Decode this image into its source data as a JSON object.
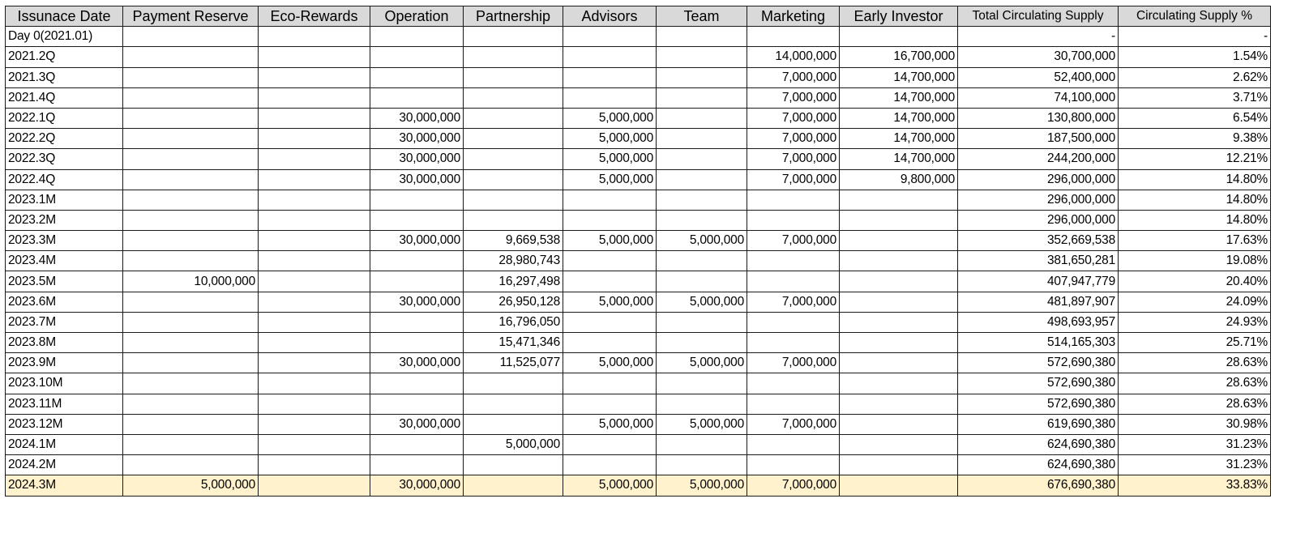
{
  "headers": [
    "Issunace Date",
    "Payment Reserve",
    "Eco-Rewards",
    "Operation",
    "Partnership",
    "Advisors",
    "Team",
    "Marketing",
    "Early Investor",
    "Total Circulating Supply",
    "Circulating Supply %"
  ],
  "rows": [
    [
      "Day 0(2021.01)",
      "",
      "",
      "",
      "",
      "",
      "",
      "",
      "",
      "-",
      "-"
    ],
    [
      "2021.2Q",
      "",
      "",
      "",
      "",
      "",
      "",
      "14,000,000",
      "16,700,000",
      "30,700,000",
      "1.54%"
    ],
    [
      "2021.3Q",
      "",
      "",
      "",
      "",
      "",
      "",
      "7,000,000",
      "14,700,000",
      "52,400,000",
      "2.62%"
    ],
    [
      "2021.4Q",
      "",
      "",
      "",
      "",
      "",
      "",
      "7,000,000",
      "14,700,000",
      "74,100,000",
      "3.71%"
    ],
    [
      "2022.1Q",
      "",
      "",
      "30,000,000",
      "",
      "5,000,000",
      "",
      "7,000,000",
      "14,700,000",
      "130,800,000",
      "6.54%"
    ],
    [
      "2022.2Q",
      "",
      "",
      "30,000,000",
      "",
      "5,000,000",
      "",
      "7,000,000",
      "14,700,000",
      "187,500,000",
      "9.38%"
    ],
    [
      "2022.3Q",
      "",
      "",
      "30,000,000",
      "",
      "5,000,000",
      "",
      "7,000,000",
      "14,700,000",
      "244,200,000",
      "12.21%"
    ],
    [
      "2022.4Q",
      "",
      "",
      "30,000,000",
      "",
      "5,000,000",
      "",
      "7,000,000",
      "9,800,000",
      "296,000,000",
      "14.80%"
    ],
    [
      "2023.1M",
      "",
      "",
      "",
      "",
      "",
      "",
      "",
      "",
      "296,000,000",
      "14.80%"
    ],
    [
      "2023.2M",
      "",
      "",
      "",
      "",
      "",
      "",
      "",
      "",
      "296,000,000",
      "14.80%"
    ],
    [
      "2023.3M",
      "",
      "",
      "30,000,000",
      "9,669,538",
      "5,000,000",
      "5,000,000",
      "7,000,000",
      "",
      "352,669,538",
      "17.63%"
    ],
    [
      "2023.4M",
      "",
      "",
      "",
      "28,980,743",
      "",
      "",
      "",
      "",
      "381,650,281",
      "19.08%"
    ],
    [
      "2023.5M",
      "10,000,000",
      "",
      "",
      "16,297,498",
      "",
      "",
      "",
      "",
      "407,947,779",
      "20.40%"
    ],
    [
      "2023.6M",
      "",
      "",
      "30,000,000",
      "26,950,128",
      "5,000,000",
      "5,000,000",
      "7,000,000",
      "",
      "481,897,907",
      "24.09%"
    ],
    [
      "2023.7M",
      "",
      "",
      "",
      "16,796,050",
      "",
      "",
      "",
      "",
      "498,693,957",
      "24.93%"
    ],
    [
      "2023.8M",
      "",
      "",
      "",
      "15,471,346",
      "",
      "",
      "",
      "",
      "514,165,303",
      "25.71%"
    ],
    [
      "2023.9M",
      "",
      "",
      "30,000,000",
      "11,525,077",
      "5,000,000",
      "5,000,000",
      "7,000,000",
      "",
      "572,690,380",
      "28.63%"
    ],
    [
      "2023.10M",
      "",
      "",
      "",
      "",
      "",
      "",
      "",
      "",
      "572,690,380",
      "28.63%"
    ],
    [
      "2023.11M",
      "",
      "",
      "",
      "",
      "",
      "",
      "",
      "",
      "572,690,380",
      "28.63%"
    ],
    [
      "2023.12M",
      "",
      "",
      "30,000,000",
      "",
      "5,000,000",
      "5,000,000",
      "7,000,000",
      "",
      "619,690,380",
      "30.98%"
    ],
    [
      "2024.1M",
      "",
      "",
      "",
      "5,000,000",
      "",
      "",
      "",
      "",
      "624,690,380",
      "31.23%"
    ],
    [
      "2024.2M",
      "",
      "",
      "",
      "",
      "",
      "",
      "",
      "",
      "624,690,380",
      "31.23%"
    ],
    [
      "2024.3M",
      "5,000,000",
      "",
      "30,000,000",
      "",
      "5,000,000",
      "5,000,000",
      "7,000,000",
      "",
      "676,690,380",
      "33.83%"
    ]
  ],
  "highlight_row": 22,
  "colors": {
    "header_bg": "#d9d9d9",
    "highlight_bg": "#fff2cc",
    "border": "#1a1a1a"
  }
}
